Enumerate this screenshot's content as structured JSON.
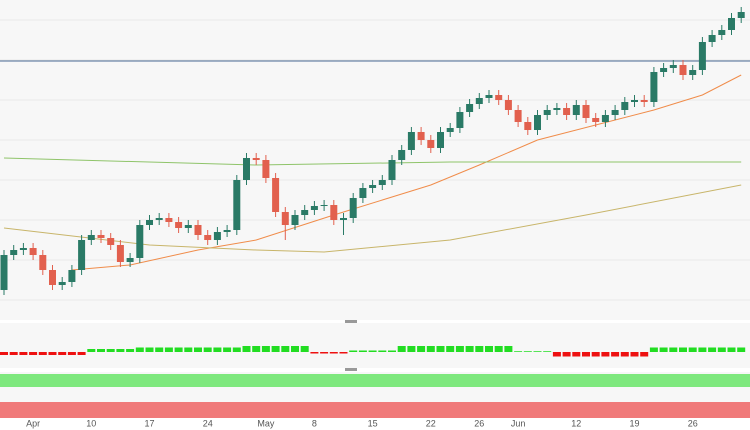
{
  "chart_data": {
    "type": "candlestick",
    "x": [
      null,
      null,
      null,
      "Apr",
      null,
      null,
      null,
      null,
      null,
      "10",
      null,
      null,
      null,
      null,
      null,
      "17",
      null,
      null,
      null,
      null,
      null,
      "24",
      null,
      null,
      null,
      null,
      null,
      "May",
      null,
      null,
      null,
      null,
      "8",
      null,
      null,
      null,
      null,
      null,
      "15",
      null,
      null,
      null,
      null,
      null,
      "22",
      null,
      null,
      null,
      null,
      "26",
      null,
      null,
      null,
      "Jun",
      null,
      null,
      null,
      null,
      null,
      "12",
      null,
      null,
      null,
      null,
      null,
      "19",
      null,
      null,
      null,
      null,
      null,
      "26",
      null,
      null,
      null,
      null,
      null
    ],
    "candles": [
      [
        30,
        70,
        25,
        65
      ],
      [
        65,
        75,
        60,
        70
      ],
      [
        70,
        77,
        65,
        72
      ],
      [
        72,
        77,
        60,
        65
      ],
      [
        65,
        70,
        45,
        50
      ],
      [
        50,
        55,
        30,
        35
      ],
      [
        35,
        43,
        30,
        38
      ],
      [
        38,
        55,
        33,
        50
      ],
      [
        50,
        85,
        45,
        80
      ],
      [
        80,
        90,
        75,
        85
      ],
      [
        85,
        90,
        77,
        82
      ],
      [
        82,
        87,
        70,
        75
      ],
      [
        75,
        80,
        53,
        58
      ],
      [
        58,
        67,
        53,
        62
      ],
      [
        62,
        100,
        57,
        95
      ],
      [
        95,
        105,
        90,
        100
      ],
      [
        100,
        107,
        95,
        102
      ],
      [
        102,
        107,
        93,
        98
      ],
      [
        98,
        103,
        87,
        92
      ],
      [
        92,
        100,
        87,
        95
      ],
      [
        95,
        100,
        80,
        85
      ],
      [
        85,
        90,
        75,
        80
      ],
      [
        80,
        93,
        75,
        88
      ],
      [
        88,
        95,
        83,
        90
      ],
      [
        90,
        145,
        85,
        140
      ],
      [
        140,
        167,
        135,
        162
      ],
      [
        162,
        167,
        155,
        160
      ],
      [
        160,
        165,
        137,
        142
      ],
      [
        142,
        147,
        103,
        108
      ],
      [
        108,
        113,
        80,
        95
      ],
      [
        95,
        110,
        90,
        105
      ],
      [
        105,
        115,
        100,
        110
      ],
      [
        110,
        119,
        105,
        114
      ],
      [
        114,
        120,
        109,
        115
      ],
      [
        115,
        120,
        95,
        100
      ],
      [
        100,
        107,
        85,
        102
      ],
      [
        102,
        127,
        97,
        122
      ],
      [
        122,
        137,
        117,
        132
      ],
      [
        132,
        140,
        127,
        135
      ],
      [
        135,
        145,
        130,
        140
      ],
      [
        140,
        165,
        135,
        160
      ],
      [
        160,
        175,
        155,
        170
      ],
      [
        170,
        193,
        165,
        188
      ],
      [
        188,
        193,
        175,
        180
      ],
      [
        180,
        185,
        167,
        172
      ],
      [
        172,
        193,
        167,
        188
      ],
      [
        188,
        197,
        183,
        192
      ],
      [
        192,
        213,
        187,
        208
      ],
      [
        208,
        221,
        203,
        216
      ],
      [
        216,
        227,
        211,
        222
      ],
      [
        222,
        230,
        217,
        225
      ],
      [
        225,
        230,
        215,
        220
      ],
      [
        220,
        225,
        205,
        210
      ],
      [
        210,
        215,
        193,
        198
      ],
      [
        198,
        203,
        185,
        190
      ],
      [
        190,
        210,
        185,
        205
      ],
      [
        205,
        215,
        200,
        210
      ],
      [
        210,
        217,
        205,
        212
      ],
      [
        212,
        217,
        200,
        205
      ],
      [
        205,
        220,
        200,
        215
      ],
      [
        215,
        220,
        197,
        202
      ],
      [
        202,
        207,
        193,
        198
      ],
      [
        198,
        210,
        193,
        205
      ],
      [
        205,
        215,
        200,
        210
      ],
      [
        210,
        223,
        205,
        218
      ],
      [
        218,
        225,
        213,
        220
      ],
      [
        220,
        225,
        213,
        218
      ],
      [
        218,
        253,
        213,
        248
      ],
      [
        248,
        257,
        243,
        252
      ],
      [
        252,
        260,
        247,
        255
      ],
      [
        255,
        260,
        240,
        245
      ],
      [
        245,
        255,
        240,
        250
      ],
      [
        250,
        283,
        245,
        278
      ],
      [
        278,
        290,
        273,
        285
      ],
      [
        285,
        295,
        280,
        290
      ],
      [
        290,
        307,
        285,
        302
      ],
      [
        302,
        313,
        297,
        308
      ]
    ],
    "up_color": "#2a7a66",
    "down_color": "#e2604e",
    "lines": [
      {
        "color": "#f08c4a",
        "x": [
          7,
          13,
          20,
          26,
          34,
          39,
          44,
          49,
          55,
          61,
          67,
          72,
          76
        ],
        "values": [
          50,
          55,
          70,
          80,
          105,
          120,
          135,
          155,
          180,
          195,
          210,
          225,
          245
        ]
      },
      {
        "color": "#8fc46a",
        "x": [
          0,
          26,
          46,
          76
        ],
        "values": [
          162,
          155,
          158,
          158
        ]
      },
      {
        "color": "#c8b56a",
        "x": [
          0,
          15,
          26,
          33,
          46,
          60,
          76
        ],
        "values": [
          92,
          75,
          70,
          68,
          80,
          105,
          135
        ]
      }
    ],
    "level": 259,
    "level_color": "#4a6a94",
    "ylim": [
      0,
      320
    ],
    "macd_histogram": [
      -2,
      -2,
      -2,
      -2,
      -2,
      -2,
      -2,
      -2,
      -2,
      2,
      2,
      2,
      2,
      2,
      3,
      3,
      3,
      3,
      3,
      3,
      3,
      3,
      3,
      3,
      3,
      4,
      4,
      4,
      4,
      4,
      4,
      4,
      -1,
      -1,
      -1,
      -1,
      1,
      1,
      1,
      1,
      1,
      4,
      4,
      4,
      4,
      4,
      4,
      4,
      4,
      4,
      4,
      4,
      4,
      0.5,
      0.5,
      0.5,
      0.5,
      -3,
      -3,
      -3,
      -3,
      -3,
      -3,
      -3,
      -3,
      -3,
      -3,
      3,
      3,
      3,
      3,
      3,
      3,
      3,
      3,
      3,
      3
    ]
  }
}
